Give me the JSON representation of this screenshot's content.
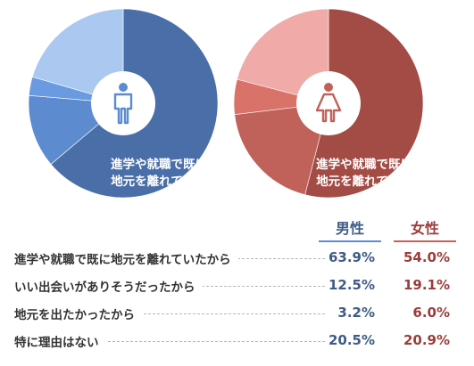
{
  "colors": {
    "male_dark": "#4a6ea8",
    "male_mid": "#5c8bd0",
    "male_light": "#aac8f0",
    "female_dark": "#a34c46",
    "female_mid": "#c0625a",
    "female_light": "#f0aaa8",
    "male_text": "#3f5b86",
    "female_text": "#9b3d3a"
  },
  "chart_data": {
    "type": "pie",
    "categories": [
      "進学や就職で既に地元を離れていたから",
      "いい出会いがありそうだったから",
      "地元を出たかったから",
      "特に理由はない"
    ],
    "series": [
      {
        "name": "男性",
        "values": [
          63.9,
          12.5,
          3.2,
          20.5
        ]
      },
      {
        "name": "女性",
        "values": [
          54.0,
          19.1,
          6.0,
          20.9
        ]
      }
    ],
    "slice_label": [
      "進学や就職で既に",
      "地元を離れていた"
    ],
    "legend": "table-below",
    "units": "%"
  },
  "table": {
    "rows": [
      {
        "label": "進学や就職で既に地元を離れていたから",
        "male": "63.9%",
        "female": "54.0%"
      },
      {
        "label": "いい出会いがありそうだったから",
        "male": "12.5%",
        "female": "19.1%"
      },
      {
        "label": "地元を出たかったから",
        "male": "3.2%",
        "female": "6.0%"
      },
      {
        "label": "特に理由はない",
        "male": "20.5%",
        "female": "20.9%"
      }
    ]
  },
  "icons": {
    "male": "male-figure-icon",
    "female": "female-figure-icon"
  }
}
